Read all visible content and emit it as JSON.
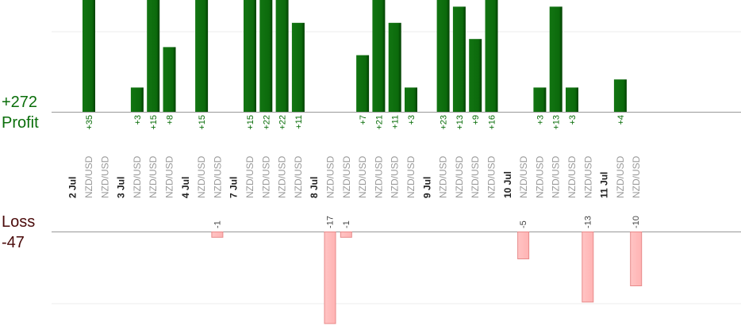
{
  "summary": {
    "profit_total": "+272",
    "profit_label": "Profit",
    "loss_label": "Loss",
    "loss_total": "-47"
  },
  "colors": {
    "profit_bar": "#0c6a0c",
    "profit_text": "#0a6e0a",
    "loss_bar": "#ffb3b3",
    "loss_stroke": "#e88a8a",
    "loss_text": "#4a0a0a",
    "axis": "#999999",
    "grid": "#eeeeee",
    "instrument_text": "#999999",
    "date_text": "#222222"
  },
  "chart_data": {
    "type": "bar",
    "profit_scale_max": 35,
    "loss_scale_min": -25,
    "groups": [
      {
        "date": "2 Jul",
        "trades": [
          {
            "instrument": "NZD/USD",
            "value": 35,
            "label": "+35"
          },
          {
            "instrument": "NZD/USD",
            "value": 0,
            "label": ""
          }
        ]
      },
      {
        "date": "3 Jul",
        "trades": [
          {
            "instrument": "NZD/USD",
            "value": 3,
            "label": "+3"
          },
          {
            "instrument": "NZD/USD",
            "value": 15,
            "label": "+15"
          },
          {
            "instrument": "NZD/USD",
            "value": 8,
            "label": "+8"
          }
        ]
      },
      {
        "date": "4 Jul",
        "trades": [
          {
            "instrument": "NZD/USD",
            "value": 15,
            "label": "+15"
          },
          {
            "instrument": "NZD/USD",
            "value": -1,
            "label": "-1"
          }
        ]
      },
      {
        "date": "7 Jul",
        "trades": [
          {
            "instrument": "NZD/USD",
            "value": 15,
            "label": "+15"
          },
          {
            "instrument": "NZD/USD",
            "value": 22,
            "label": "+22"
          },
          {
            "instrument": "NZD/USD",
            "value": 22,
            "label": "+22"
          },
          {
            "instrument": "NZD/USD",
            "value": 11,
            "label": "+11"
          }
        ]
      },
      {
        "date": "8 Jul",
        "trades": [
          {
            "instrument": "NZD/USD",
            "value": -17,
            "label": "-17"
          },
          {
            "instrument": "NZD/USD",
            "value": -1,
            "label": "-1"
          },
          {
            "instrument": "NZD/USD",
            "value": 7,
            "label": "+7"
          },
          {
            "instrument": "NZD/USD",
            "value": 21,
            "label": "+21"
          },
          {
            "instrument": "NZD/USD",
            "value": 11,
            "label": "+11"
          },
          {
            "instrument": "NZD/USD",
            "value": 3,
            "label": "+3"
          }
        ]
      },
      {
        "date": "9 Jul",
        "trades": [
          {
            "instrument": "NZD/USD",
            "value": 23,
            "label": "+23"
          },
          {
            "instrument": "NZD/USD",
            "value": 13,
            "label": "+13"
          },
          {
            "instrument": "NZD/USD",
            "value": 9,
            "label": "+9"
          },
          {
            "instrument": "NZD/USD",
            "value": 16,
            "label": "+16"
          }
        ]
      },
      {
        "date": "10 Jul",
        "trades": [
          {
            "instrument": "NZD/USD",
            "value": -5,
            "label": "-5"
          },
          {
            "instrument": "NZD/USD",
            "value": 3,
            "label": "+3"
          },
          {
            "instrument": "NZD/USD",
            "value": 13,
            "label": "+13"
          },
          {
            "instrument": "NZD/USD",
            "value": 3,
            "label": "+3"
          },
          {
            "instrument": "NZD/USD",
            "value": -13,
            "label": "-13"
          }
        ]
      },
      {
        "date": "11 Jul",
        "trades": [
          {
            "instrument": "NZD/USD",
            "value": 4,
            "label": "+4"
          },
          {
            "instrument": "NZD/USD",
            "value": -10,
            "label": "-10"
          }
        ]
      }
    ]
  }
}
